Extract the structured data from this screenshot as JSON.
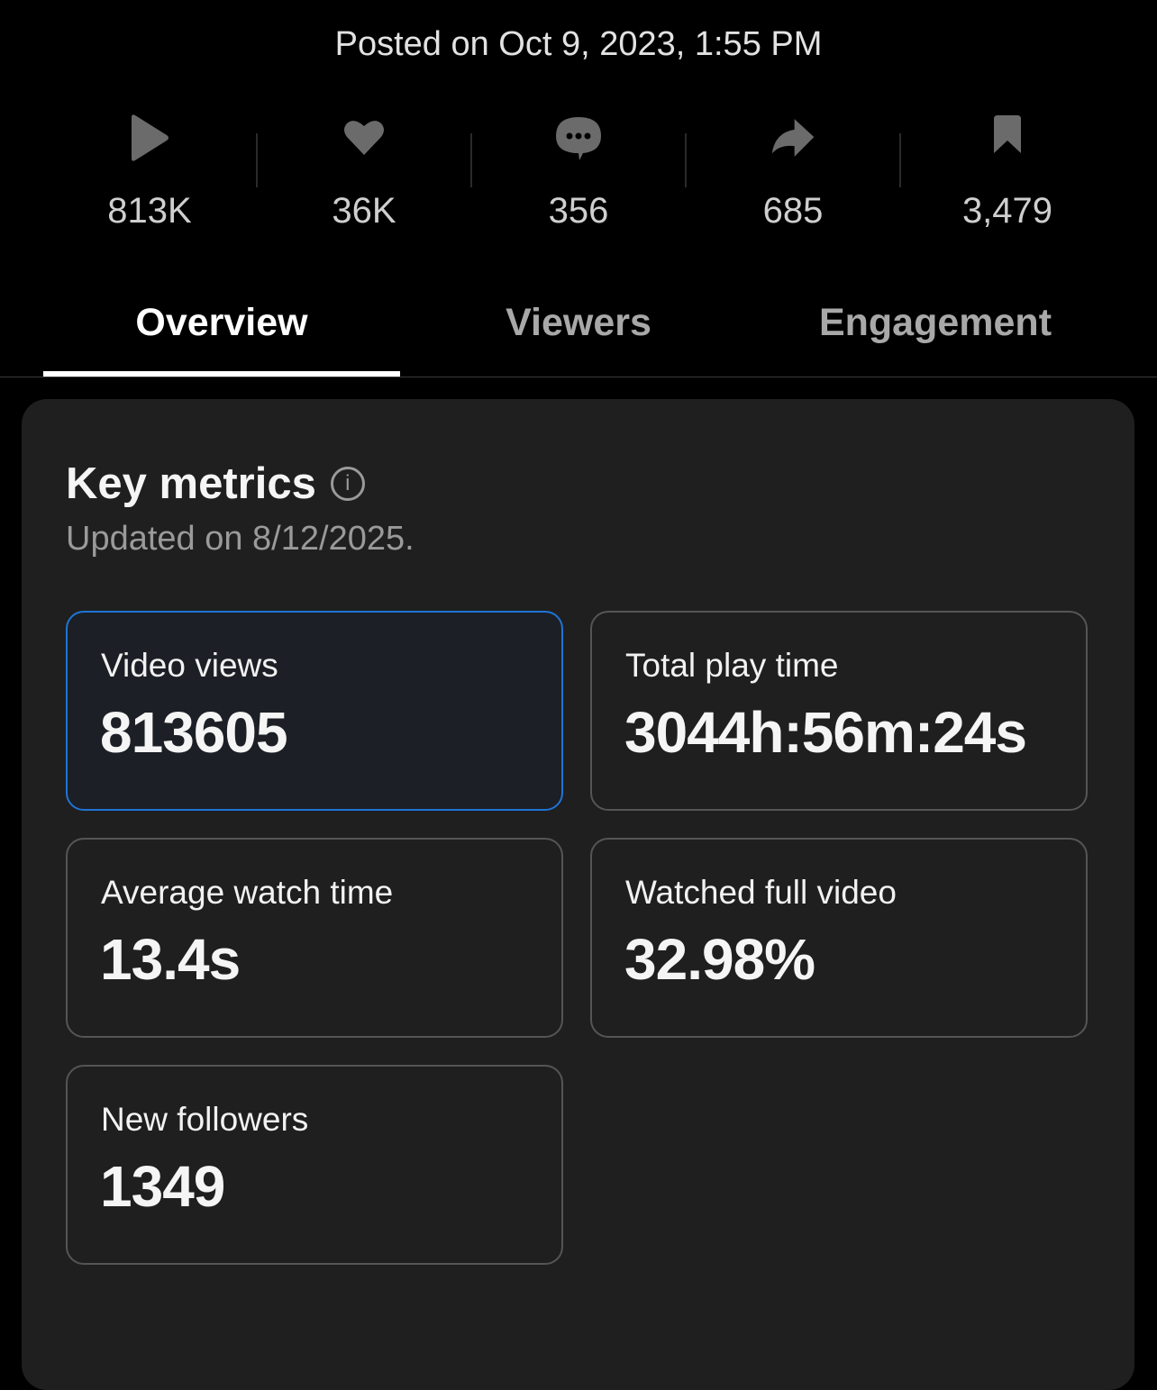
{
  "posted": "Posted on Oct 9, 2023, 1:55 PM",
  "stats": [
    {
      "icon": "play-icon",
      "value": "813K"
    },
    {
      "icon": "heart-icon",
      "value": "36K"
    },
    {
      "icon": "comment-icon",
      "value": "356"
    },
    {
      "icon": "share-icon",
      "value": "685"
    },
    {
      "icon": "bookmark-icon",
      "value": "3,479"
    }
  ],
  "tabs": [
    {
      "label": "Overview",
      "active": true
    },
    {
      "label": "Viewers",
      "active": false
    },
    {
      "label": "Engagement",
      "active": false
    }
  ],
  "key_metrics": {
    "title": "Key metrics",
    "info_icon": "i",
    "updated": "Updated on 8/12/2025.",
    "tiles": [
      {
        "label": "Video views",
        "value": "813605",
        "selected": true
      },
      {
        "label": "Total play time",
        "value": "3044h:56m:24s",
        "selected": false
      },
      {
        "label": "Average watch time",
        "value": "13.4s",
        "selected": false
      },
      {
        "label": "Watched full video",
        "value": "32.98%",
        "selected": false
      },
      {
        "label": "New followers",
        "value": "1349",
        "selected": false
      }
    ]
  },
  "colors": {
    "accent": "#1e74d6",
    "icon": "#6b6b6b",
    "card": "#1f1f1f"
  }
}
